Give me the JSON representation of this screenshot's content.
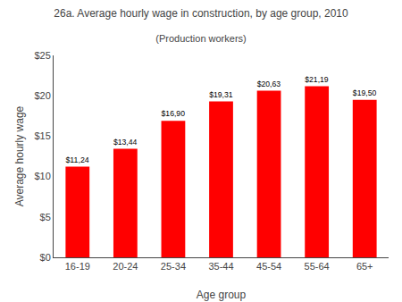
{
  "chart_data": {
    "type": "bar",
    "title": "26a. Average hourly wage in construction, by age group, 2010",
    "subtitle": "(Production workers)",
    "xlabel": "Age group",
    "ylabel": "Average hourly wage",
    "categories": [
      "16-19",
      "20-24",
      "25-34",
      "35-44",
      "45-54",
      "55-64",
      "65+"
    ],
    "values": [
      11.24,
      13.44,
      16.9,
      19.31,
      20.63,
      21.19,
      19.5
    ],
    "value_labels": [
      "$11,24",
      "$13,44",
      "$16,90",
      "$19,31",
      "$20,63",
      "$21,19",
      "$19,50"
    ],
    "data_labels": true,
    "color": "#ff0000",
    "ylim": [
      0,
      25
    ],
    "yticks": [
      {
        "value": 0,
        "label": "$0"
      },
      {
        "value": 5,
        "label": "$5"
      },
      {
        "value": 10,
        "label": "$10"
      },
      {
        "value": 15,
        "label": "$15"
      },
      {
        "value": 20,
        "label": "$20"
      },
      {
        "value": 25,
        "label": "$25"
      }
    ],
    "grid": false
  }
}
